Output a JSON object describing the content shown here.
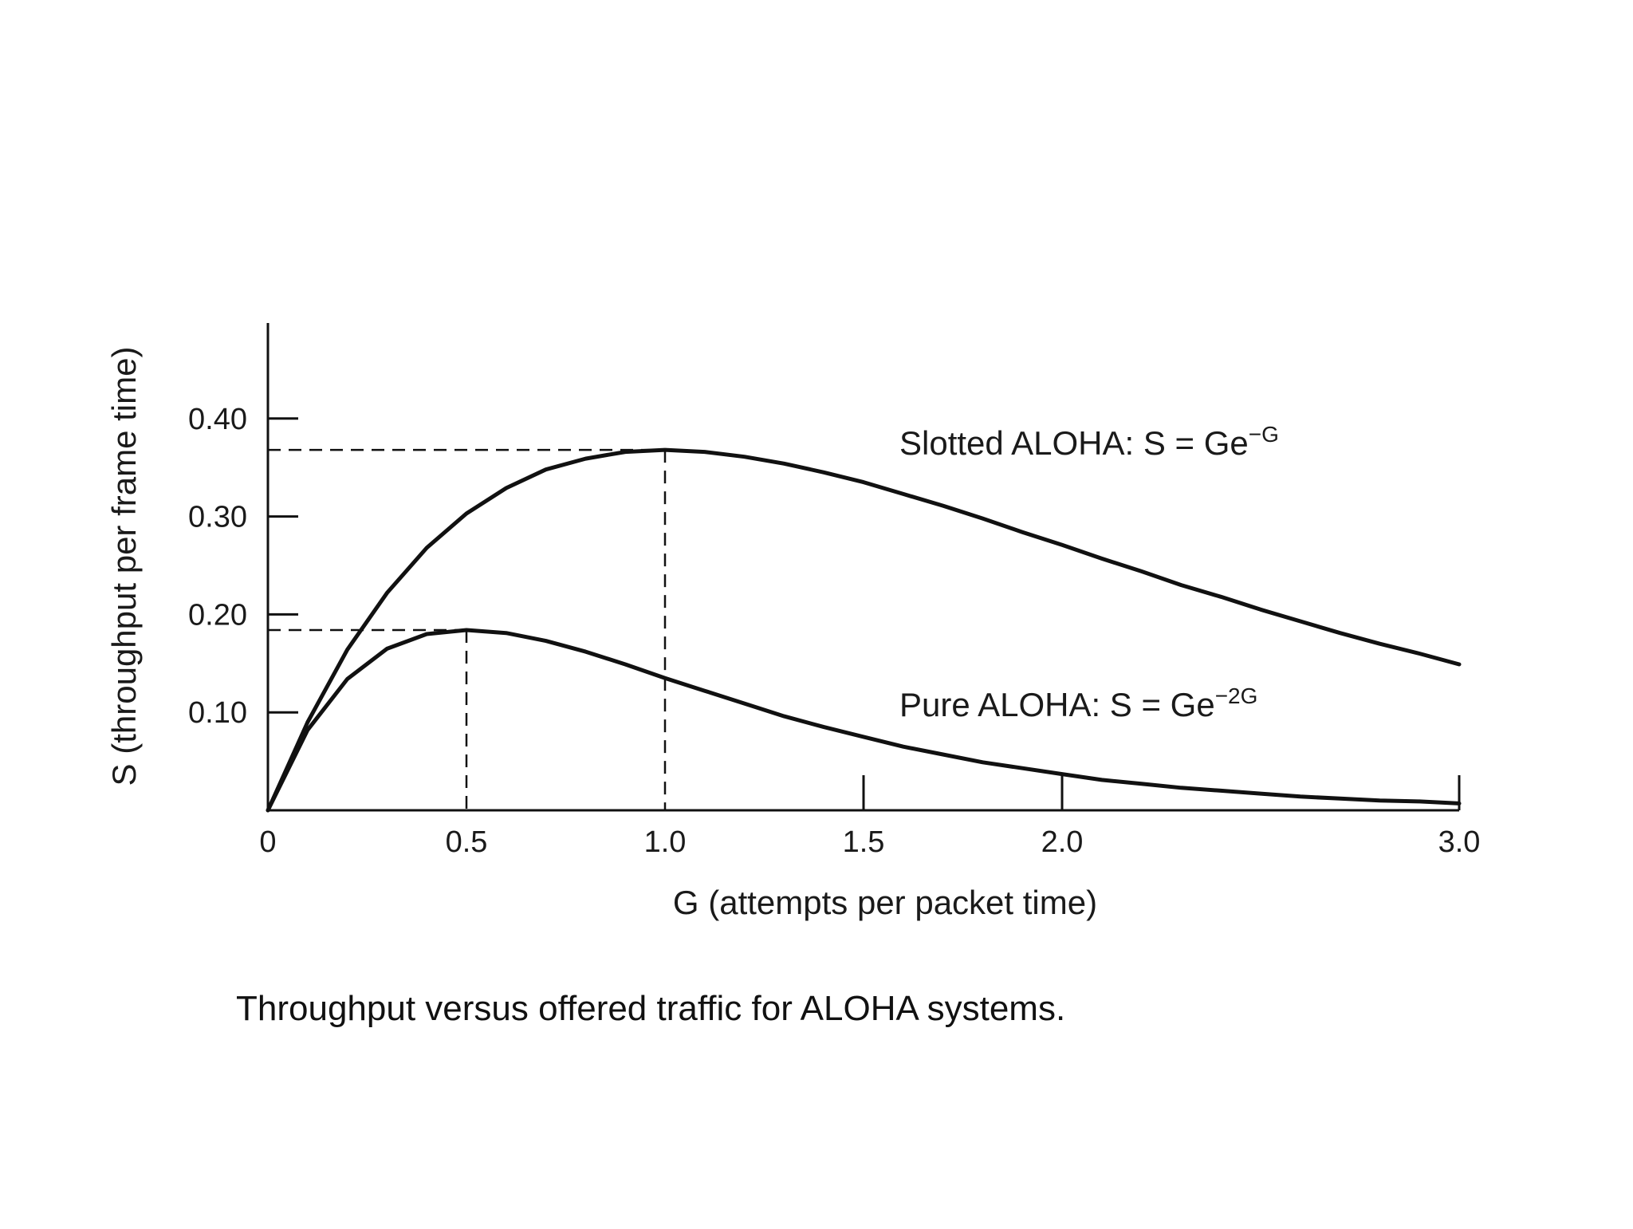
{
  "chart_data": {
    "type": "line",
    "xlabel": "G (attempts per packet time)",
    "ylabel": "S (throughput per frame time)",
    "xlim": [
      0,
      3.0
    ],
    "ylim": [
      0,
      0.5
    ],
    "x_ticks": [
      {
        "value": 0,
        "label": "0"
      },
      {
        "value": 0.5,
        "label": "0.5"
      },
      {
        "value": 1.0,
        "label": "1.0"
      },
      {
        "value": 1.5,
        "label": "1.5"
      },
      {
        "value": 2.0,
        "label": "2.0"
      },
      {
        "value": 3.0,
        "label": "3.0"
      }
    ],
    "y_ticks": [
      {
        "value": 0.1,
        "label": "0.10"
      },
      {
        "value": 0.2,
        "label": "0.20"
      },
      {
        "value": 0.3,
        "label": "0.30"
      },
      {
        "value": 0.4,
        "label": "0.40"
      }
    ],
    "series": [
      {
        "name": "Slotted ALOHA",
        "formula_label": "Slotted ALOHA: S = Ge",
        "formula_exponent": "−G",
        "x": [
          0,
          0.1,
          0.2,
          0.3,
          0.4,
          0.5,
          0.6,
          0.7,
          0.8,
          0.9,
          1.0,
          1.1,
          1.2,
          1.3,
          1.4,
          1.5,
          1.6,
          1.7,
          1.8,
          1.9,
          2.0,
          2.1,
          2.2,
          2.3,
          2.4,
          2.5,
          2.6,
          2.7,
          2.8,
          2.9,
          3.0
        ],
        "values": [
          0,
          0.09,
          0.164,
          0.222,
          0.268,
          0.303,
          0.329,
          0.348,
          0.359,
          0.366,
          0.368,
          0.366,
          0.361,
          0.354,
          0.345,
          0.335,
          0.323,
          0.311,
          0.298,
          0.284,
          0.271,
          0.257,
          0.244,
          0.23,
          0.218,
          0.205,
          0.193,
          0.181,
          0.17,
          0.16,
          0.149
        ]
      },
      {
        "name": "Pure ALOHA",
        "formula_label": "Pure ALOHA: S = Ge",
        "formula_exponent": "−2G",
        "x": [
          0,
          0.1,
          0.2,
          0.3,
          0.4,
          0.5,
          0.6,
          0.7,
          0.8,
          0.9,
          1.0,
          1.1,
          1.2,
          1.3,
          1.4,
          1.5,
          1.6,
          1.7,
          1.8,
          1.9,
          2.0,
          2.1,
          2.2,
          2.3,
          2.4,
          2.5,
          2.6,
          2.7,
          2.8,
          2.9,
          3.0
        ],
        "values": [
          0,
          0.082,
          0.134,
          0.165,
          0.18,
          0.184,
          0.181,
          0.173,
          0.162,
          0.149,
          0.135,
          0.122,
          0.109,
          0.096,
          0.085,
          0.075,
          0.065,
          0.057,
          0.049,
          0.043,
          0.037,
          0.031,
          0.027,
          0.023,
          0.02,
          0.017,
          0.014,
          0.012,
          0.01,
          0.009,
          0.007
        ]
      }
    ],
    "reference_lines": [
      {
        "series": "Slotted ALOHA",
        "peak_x": 1.0,
        "peak_y": 0.368
      },
      {
        "series": "Pure ALOHA",
        "peak_x": 0.5,
        "peak_y": 0.184
      }
    ],
    "grid": false,
    "legend": "inline labels"
  },
  "caption": "Throughput versus offered traffic for ALOHA systems."
}
